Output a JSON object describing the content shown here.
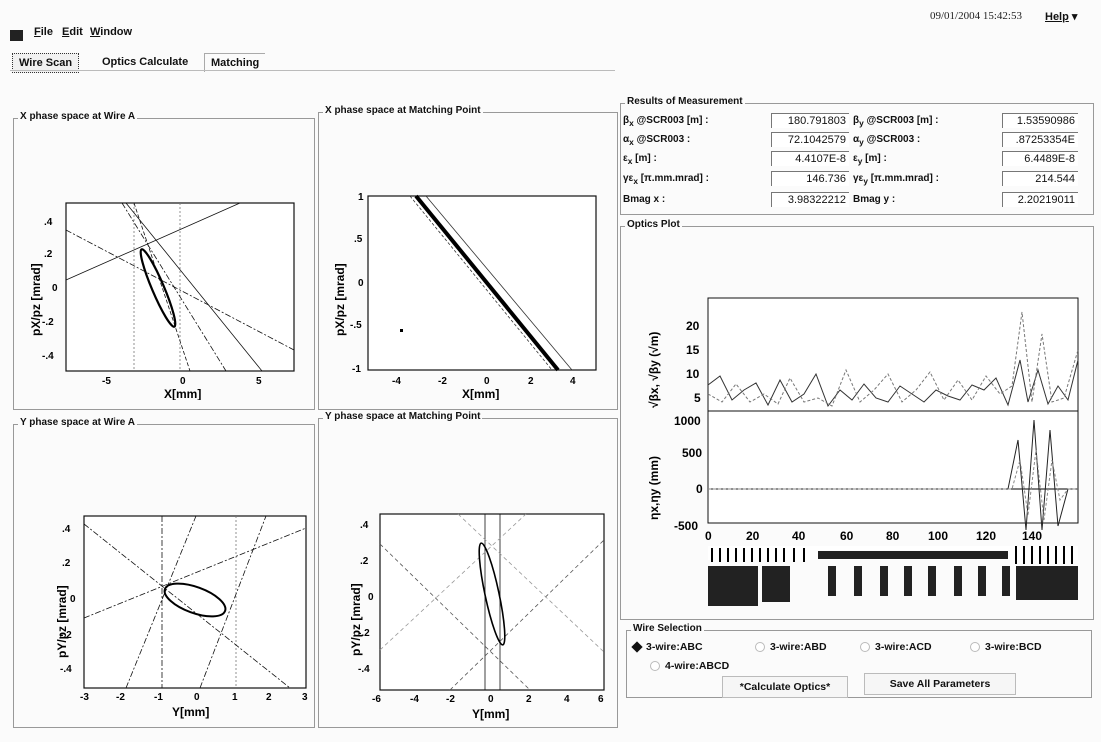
{
  "header": {
    "timestamp": "09/01/2004 15:42:53",
    "help_label": "Help"
  },
  "menu": {
    "items": [
      {
        "label": "File",
        "mnemonic": "F",
        "rest": "ile"
      },
      {
        "label": "Edit",
        "mnemonic": "E",
        "rest": "dit"
      },
      {
        "label": "Window",
        "mnemonic": "W",
        "rest": "indow"
      }
    ]
  },
  "tabs": [
    "Wire Scan",
    "Optics Calculate",
    "Matching"
  ],
  "panels": {
    "x_wire": "X phase space at Wire A",
    "x_match": "X phase space at Matching Point",
    "y_wire": "Y phase space at Wire A",
    "y_match": "Y phase space at Matching Point",
    "results": "Results of Measurement",
    "optics": "Optics Plot",
    "wire_selection": "Wire Selection"
  },
  "results": {
    "beta_x_label": "β",
    "beta_x_sub": "x",
    "beta_x_tail": " @SCR003 [m]  :",
    "beta_x": "180.791803",
    "beta_y_label": "β",
    "beta_y_sub": "y",
    "beta_y_tail": " @SCR003 [m]  :",
    "beta_y": "1.53590986",
    "alpha_x_label": "α",
    "alpha_x_sub": "x",
    "alpha_x_tail": " @SCR003       :",
    "alpha_x": "72.1042579",
    "alpha_y_label": "α",
    "alpha_y_sub": "y",
    "alpha_y_tail": " @SCR003       :",
    "alpha_y": ".87253354E",
    "eps_x_label": "ε",
    "eps_x_sub": "x",
    "eps_x_tail": " [m] :",
    "eps_x": "4.4107E-8",
    "eps_y_label": "ε",
    "eps_y_sub": "y",
    "eps_y_tail": " [m]  :",
    "eps_y": "6.4489E-8",
    "geps_x_label": "γε",
    "geps_x_sub": "x",
    "geps_x_tail": " [π.mm.mrad] :",
    "geps_x": "146.736",
    "geps_y_label": "γε",
    "geps_y_sub": "y",
    "geps_y_tail": " [π.mm.mrad] :",
    "geps_y": "214.544",
    "bmag_x_label": "Bmag x :",
    "bmag_x": "3.98322212",
    "bmag_y_label": "Bmag y :",
    "bmag_y": "2.20219011"
  },
  "wire_selection": {
    "options": [
      "3-wire:ABC",
      "3-wire:ABD",
      "3-wire:ACD",
      "3-wire:BCD",
      "4-wire:ABCD"
    ],
    "selected": "3-wire:ABC"
  },
  "buttons": {
    "calculate": "*Calculate Optics*",
    "save": "Save All Parameters"
  },
  "plots": {
    "x_wire": {
      "ylabel": "pX/pz [mrad]",
      "xlabel": "X[mm]",
      "xticks": [
        "-5",
        "0",
        "5"
      ],
      "yticks": [
        ".4",
        ".2",
        "0",
        "-.2",
        "-.4"
      ]
    },
    "x_match": {
      "ylabel": "pX/pz [mrad]",
      "xlabel": "X[mm]",
      "xticks": [
        "-4",
        "-2",
        "0",
        "2",
        "4"
      ],
      "yticks": [
        "1",
        ".5",
        "0",
        "-.5",
        "-1"
      ]
    },
    "y_wire": {
      "ylabel": "pY/pz [mrad]",
      "xlabel": "Y[mm]",
      "xticks": [
        "-3",
        "-2",
        "-1",
        "0",
        "1",
        "2",
        "3"
      ],
      "yticks": [
        ".4",
        ".2",
        "0",
        "-.2",
        "-.4"
      ]
    },
    "y_match": {
      "ylabel": "pY/pz [mrad]",
      "xlabel": "Y[mm]",
      "xticks": [
        "-6",
        "-4",
        "-2",
        "0",
        "2",
        "4",
        "6"
      ],
      "yticks": [
        ".4",
        ".2",
        "0",
        "-.2",
        "-.4"
      ]
    },
    "optics_top": {
      "ylabel": "√βx, √βy (√m)",
      "yticks": [
        "20",
        "15",
        "10",
        "5"
      ]
    },
    "optics_bottom": {
      "ylabel": "ηx,ηy (mm)",
      "yticks": [
        "1000",
        "500",
        "0",
        "-500"
      ],
      "xticks": [
        "0",
        "20",
        "40",
        "60",
        "80",
        "100",
        "120",
        "140"
      ]
    }
  },
  "colors": {
    "background": "#fbfbfb",
    "frame": "#999999",
    "ink": "#111111"
  }
}
